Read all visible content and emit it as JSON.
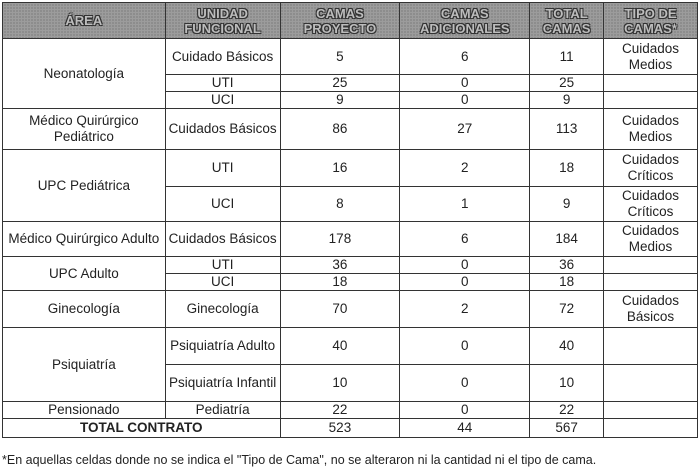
{
  "headers": [
    "ÁREA",
    "UNIDAD FUNCIONAL",
    "CAMAS PROYECTO",
    "CAMAS ADICIONALES",
    "TOTAL CAMAS",
    "TIPO DE CAMAS*"
  ],
  "groups": [
    {
      "area": "Neonatología",
      "rows": [
        {
          "unidad": "Cuidado Básicos",
          "proyecto": "5",
          "adicionales": "6",
          "total": "11",
          "tipo": "Cuidados Medios",
          "h": 36
        },
        {
          "unidad": "UTI",
          "proyecto": "25",
          "adicionales": "0",
          "total": "25",
          "tipo": "",
          "h": 17
        },
        {
          "unidad": "UCI",
          "proyecto": "9",
          "adicionales": "0",
          "total": "9",
          "tipo": "",
          "h": 17
        }
      ]
    },
    {
      "area": "Médico Quirúrgico Pediátrico",
      "rows": [
        {
          "unidad": "Cuidados Básicos",
          "proyecto": "86",
          "adicionales": "27",
          "total": "113",
          "tipo": "Cuidados Medios",
          "h": 41
        }
      ]
    },
    {
      "area": "UPC Pediátrica",
      "rows": [
        {
          "unidad": "UTI",
          "proyecto": "16",
          "adicionales": "2",
          "total": "18",
          "tipo": "Cuidados Críticos",
          "h": 37
        },
        {
          "unidad": "UCI",
          "proyecto": "8",
          "adicionales": "1",
          "total": "9",
          "tipo": "Cuidados Críticos",
          "h": 35
        }
      ]
    },
    {
      "area": "Médico Quirúrgico Adulto",
      "rows": [
        {
          "unidad": "Cuidados Básicos",
          "proyecto": "178",
          "adicionales": "6",
          "total": "184",
          "tipo": "Cuidados Medios",
          "h": 35
        }
      ]
    },
    {
      "area": "UPC Adulto",
      "rows": [
        {
          "unidad": "UTI",
          "proyecto": "36",
          "adicionales": "0",
          "total": "36",
          "tipo": "",
          "h": 17
        },
        {
          "unidad": "UCI",
          "proyecto": "18",
          "adicionales": "0",
          "total": "18",
          "tipo": "",
          "h": 17
        }
      ]
    },
    {
      "area": "Ginecología",
      "rows": [
        {
          "unidad": "Ginecología",
          "proyecto": "70",
          "adicionales": "2",
          "total": "72",
          "tipo": "Cuidados Básicos",
          "h": 37
        }
      ]
    },
    {
      "area": "Psiquiatría",
      "rows": [
        {
          "unidad": "Psiquiatría Adulto",
          "proyecto": "40",
          "adicionales": "0",
          "total": "40",
          "tipo": "",
          "h": 37
        },
        {
          "unidad": "Psiquiatría Infantil",
          "proyecto": "10",
          "adicionales": "0",
          "total": "10",
          "tipo": "",
          "h": 37
        }
      ]
    },
    {
      "area": "Pensionado",
      "rows": [
        {
          "unidad": "Pediatría",
          "proyecto": "22",
          "adicionales": "0",
          "total": "22",
          "tipo": "",
          "h": 17
        }
      ]
    }
  ],
  "total": {
    "label": "TOTAL CONTRATO",
    "proyecto": "523",
    "adicionales": "44",
    "total": "567",
    "tipo": ""
  },
  "footnote": "*En aquellas celdas donde no se indica el \"Tipo de Cama\", no se alteraron ni la cantidad ni el tipo de cama."
}
